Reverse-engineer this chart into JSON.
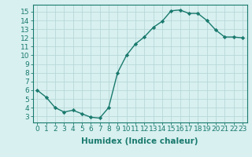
{
  "x": [
    0,
    1,
    2,
    3,
    4,
    5,
    6,
    7,
    8,
    9,
    10,
    11,
    12,
    13,
    14,
    15,
    16,
    17,
    18,
    19,
    20,
    21,
    22,
    23
  ],
  "y": [
    6.0,
    5.2,
    4.0,
    3.5,
    3.7,
    3.3,
    2.9,
    2.8,
    4.0,
    8.0,
    10.0,
    11.3,
    12.1,
    13.2,
    13.9,
    15.1,
    15.2,
    14.8,
    14.8,
    14.0,
    12.9,
    12.1,
    12.1,
    12.0
  ],
  "line_color": "#1a7a6e",
  "marker": "D",
  "marker_size": 2.2,
  "bg_color": "#d8f0f0",
  "grid_color": "#b8d8d8",
  "xlabel": "Humidex (Indice chaleur)",
  "xlim": [
    -0.5,
    23.5
  ],
  "ylim": [
    2.3,
    15.8
  ],
  "yticks": [
    3,
    4,
    5,
    6,
    7,
    8,
    9,
    10,
    11,
    12,
    13,
    14,
    15
  ],
  "xticks": [
    0,
    1,
    2,
    3,
    4,
    5,
    6,
    7,
    8,
    9,
    10,
    11,
    12,
    13,
    14,
    15,
    16,
    17,
    18,
    19,
    20,
    21,
    22,
    23
  ],
  "xlabel_fontsize": 7.5,
  "tick_fontsize": 6.5,
  "linewidth": 1.0
}
